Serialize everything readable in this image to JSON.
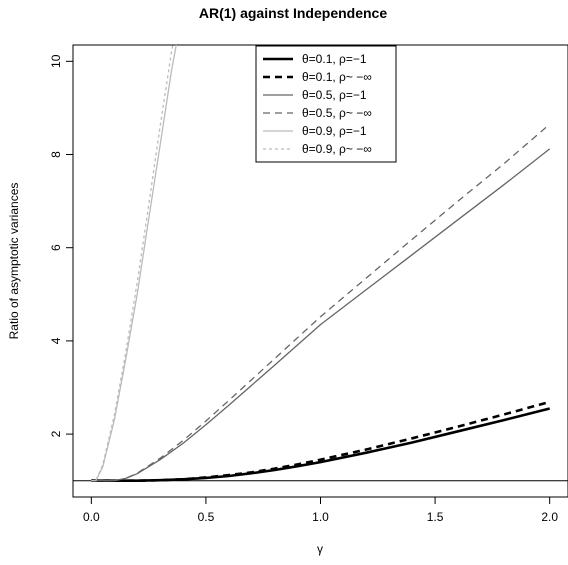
{
  "chart_data": {
    "type": "line",
    "title": "AR(1) against Independence",
    "xlabel": "γ",
    "ylabel": "Ratio of asymptotic variances",
    "xlim": [
      -0.08,
      2.08
    ],
    "ylim": [
      0.65,
      10.35
    ],
    "xticks": [
      0.0,
      0.5,
      1.0,
      1.5,
      2.0
    ],
    "xtick_labels": [
      "0.0",
      "0.5",
      "1.0",
      "1.5",
      "2.0"
    ],
    "yticks": [
      2,
      4,
      6,
      8,
      10
    ],
    "ytick_labels": [
      "2",
      "4",
      "6",
      "8",
      "10"
    ],
    "reference_line": {
      "y": 1,
      "color": "#000000"
    },
    "grid": false,
    "legend_position": "top-center",
    "series": [
      {
        "name": "θ=0.1, ρ=−1",
        "color": "#000000",
        "dash": "solid",
        "width": "thick",
        "x": [
          0.0,
          0.1,
          0.2,
          0.3,
          0.4,
          0.5,
          0.6,
          0.7,
          0.8,
          0.9,
          1.0,
          1.2,
          1.4,
          1.6,
          1.8,
          2.0
        ],
        "y": [
          1.0,
          1.0,
          1.0,
          1.01,
          1.03,
          1.06,
          1.1,
          1.16,
          1.23,
          1.31,
          1.4,
          1.6,
          1.82,
          2.06,
          2.3,
          2.55
        ]
      },
      {
        "name": "θ=0.1, ρ~ −∞",
        "color": "#000000",
        "dash": "dashed",
        "width": "thick",
        "x": [
          0.0,
          0.1,
          0.2,
          0.3,
          0.4,
          0.5,
          0.6,
          0.7,
          0.8,
          0.9,
          1.0,
          1.2,
          1.4,
          1.6,
          1.8,
          2.0
        ],
        "y": [
          1.0,
          1.0,
          1.0,
          1.01,
          1.03,
          1.07,
          1.12,
          1.18,
          1.26,
          1.35,
          1.45,
          1.67,
          1.91,
          2.16,
          2.42,
          2.69
        ]
      },
      {
        "name": "θ=0.5, ρ=−1",
        "color": "#666666",
        "dash": "solid",
        "width": "normal",
        "x": [
          0.0,
          0.02,
          0.1,
          0.15,
          0.2,
          0.3,
          0.4,
          0.5,
          0.6,
          0.7,
          0.8,
          1.0,
          1.2,
          1.4,
          1.6,
          1.8,
          2.0
        ],
        "y": [
          1.0,
          1.0,
          1.0,
          1.05,
          1.15,
          1.45,
          1.8,
          2.2,
          2.62,
          3.05,
          3.48,
          4.35,
          5.1,
          5.85,
          6.6,
          7.35,
          8.12
        ]
      },
      {
        "name": "θ=0.5, ρ~ −∞",
        "color": "#666666",
        "dash": "dashed",
        "width": "normal",
        "x": [
          0.0,
          0.02,
          0.1,
          0.15,
          0.2,
          0.3,
          0.4,
          0.5,
          0.6,
          0.7,
          0.8,
          1.0,
          1.2,
          1.4,
          1.6,
          1.8,
          2.0
        ],
        "y": [
          1.0,
          1.0,
          1.0,
          1.05,
          1.16,
          1.48,
          1.86,
          2.28,
          2.72,
          3.17,
          3.62,
          4.52,
          5.35,
          6.18,
          7.0,
          7.8,
          8.65
        ]
      },
      {
        "name": "θ=0.9, ρ=−1",
        "color": "#bbbbbb",
        "dash": "solid",
        "width": "normal",
        "x": [
          0.0,
          0.02,
          0.05,
          0.1,
          0.15,
          0.2,
          0.25,
          0.3,
          0.35,
          0.38
        ],
        "y": [
          1.0,
          1.0,
          1.3,
          2.3,
          3.6,
          5.0,
          6.6,
          8.2,
          9.8,
          10.6
        ]
      },
      {
        "name": "θ=0.9, ρ~ −∞",
        "color": "#bbbbbb",
        "dash": "dotted",
        "width": "normal",
        "x": [
          0.0,
          0.02,
          0.05,
          0.1,
          0.15,
          0.2,
          0.25,
          0.3,
          0.35,
          0.37
        ],
        "y": [
          1.0,
          1.0,
          1.35,
          2.4,
          3.75,
          5.25,
          6.9,
          8.6,
          10.2,
          10.7
        ]
      }
    ]
  }
}
